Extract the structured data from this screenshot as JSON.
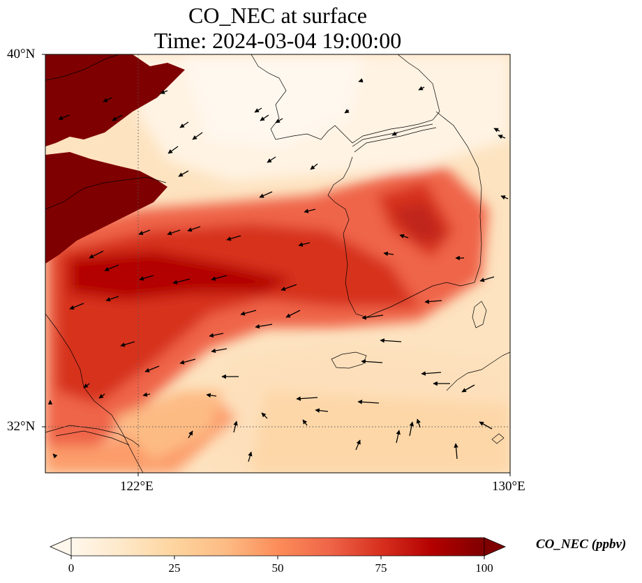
{
  "title": {
    "line1": "CO_NEC at surface",
    "line2": "Time: 2024-03-04 19:00:00"
  },
  "map": {
    "lon_range": [
      121,
      130
    ],
    "lat_range": [
      31,
      40
    ],
    "gridlines": {
      "lon": 122,
      "lat": 32,
      "style": "dotted"
    },
    "lat_labels": [
      "40°N",
      "32°N"
    ],
    "lon_labels": [
      "122°E",
      "130°E"
    ],
    "coastlines": true,
    "vectors": "wind arrows"
  },
  "colorbar": {
    "label": "CO_NEC (ppbv)",
    "colormap": "OrRd",
    "range": [
      0,
      100
    ],
    "ticks": [
      "0",
      "25",
      "50",
      "75",
      "100"
    ],
    "extend": "both",
    "colors": [
      "#fff7ec",
      "#fee8c8",
      "#fdd49e",
      "#fdbb84",
      "#fc8d59",
      "#ef6548",
      "#d7301f",
      "#b30000",
      "#7f0000"
    ]
  }
}
